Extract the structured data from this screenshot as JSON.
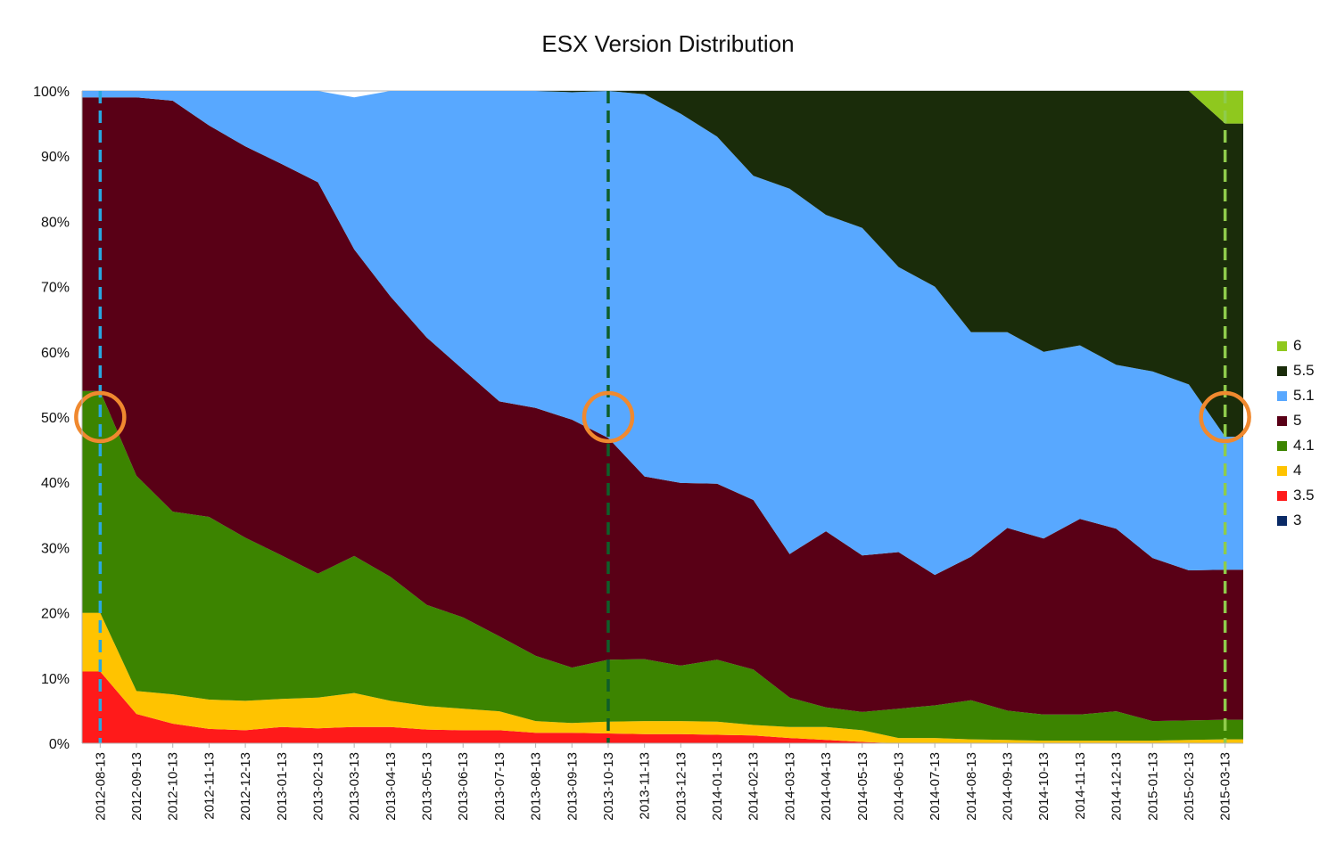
{
  "chart_data": {
    "type": "area",
    "stacked": true,
    "normalized": true,
    "title": "ESX Version Distribution",
    "xlabel": "",
    "ylabel": "",
    "ylim": [
      0,
      100
    ],
    "y_ticks": [
      "0%",
      "10%",
      "20%",
      "30%",
      "40%",
      "50%",
      "60%",
      "70%",
      "80%",
      "90%",
      "100%"
    ],
    "x_ticks": [
      "2012-08-13",
      "2012-09-13",
      "2012-10-13",
      "2012-11-13",
      "2012-12-13",
      "2013-01-13",
      "2013-02-13",
      "2013-03-13",
      "2013-04-13",
      "2013-05-13",
      "2013-06-13",
      "2013-07-13",
      "2013-08-13",
      "2013-09-13",
      "2013-10-13",
      "2013-11-13",
      "2013-12-13",
      "2014-01-13",
      "2014-02-13",
      "2014-03-13",
      "2014-04-13",
      "2014-05-13",
      "2014-06-13",
      "2014-07-13",
      "2014-08-13",
      "2014-09-13",
      "2014-10-13",
      "2014-11-13",
      "2014-12-13",
      "2015-01-13",
      "2015-02-13",
      "2015-03-13"
    ],
    "grid": true,
    "legend_position": "right",
    "series": [
      {
        "name": "3",
        "color": "#0a2a66",
        "values": [
          0,
          0,
          0,
          0,
          0,
          0,
          0,
          0,
          0,
          0,
          0,
          0,
          0,
          0,
          0,
          0,
          0,
          0,
          0,
          0,
          0,
          0,
          0,
          0,
          0,
          0,
          0,
          0,
          0,
          0,
          0,
          0
        ]
      },
      {
        "name": "3.5",
        "color": "#ff1a1a",
        "values": [
          11,
          4.5,
          3,
          2.2,
          2,
          2.5,
          2.3,
          2.5,
          2.5,
          2.1,
          2,
          2,
          1.6,
          1.6,
          1.5,
          1.4,
          1.4,
          1.3,
          1.2,
          0.8,
          0.5,
          0.2,
          0,
          0,
          0,
          0,
          0,
          0,
          0,
          0,
          0,
          0
        ]
      },
      {
        "name": "4",
        "color": "#ffc300",
        "values": [
          9,
          3.5,
          4.5,
          4.5,
          4.5,
          4.3,
          4.7,
          5.2,
          4,
          3.6,
          3.3,
          2.9,
          1.8,
          1.5,
          1.8,
          2,
          2,
          2,
          1.6,
          1.7,
          2,
          1.8,
          0.8,
          0.8,
          0.6,
          0.5,
          0.4,
          0.4,
          0.4,
          0.4,
          0.5,
          0.6
        ]
      },
      {
        "name": "4.1",
        "color": "#3c8400",
        "values": [
          34,
          33,
          28,
          28,
          25,
          22,
          19,
          21,
          19,
          15.5,
          14,
          11.5,
          10,
          8.5,
          9.5,
          9.5,
          8.5,
          9.5,
          8.5,
          4.5,
          3,
          2.8,
          4.5,
          5,
          6,
          4.5,
          4,
          4,
          4.5,
          3,
          3,
          3
        ]
      },
      {
        "name": "5",
        "color": "#590016",
        "values": [
          45,
          58,
          63,
          60,
          60,
          60,
          60,
          47,
          43,
          41,
          38,
          36,
          38,
          38,
          34,
          28,
          28,
          27,
          26,
          22,
          27,
          24,
          24,
          20,
          22,
          28,
          27,
          30,
          28,
          25,
          23,
          23
        ]
      },
      {
        "name": "5.1",
        "color": "#58a8ff",
        "values": [
          1,
          1,
          1.5,
          5.3,
          8.5,
          11.2,
          14,
          23.3,
          31.5,
          37.8,
          42.7,
          47.6,
          48.6,
          50.2,
          53.2,
          58.6,
          56.6,
          53.2,
          49.7,
          56,
          48.5,
          50.2,
          43.7,
          44.2,
          34.4,
          30,
          28.6,
          26.6,
          25.1,
          28.6,
          28.5,
          20.4
        ]
      },
      {
        "name": "5.5",
        "color": "#1a2c0a",
        "values": [
          0,
          0,
          0,
          0,
          0,
          0,
          0,
          0,
          0,
          0,
          0,
          0,
          0,
          0.2,
          0,
          0.5,
          3.5,
          7,
          13,
          15,
          19,
          21,
          27,
          30,
          37,
          37,
          40,
          39,
          42,
          43,
          45,
          48
        ]
      },
      {
        "name": "6",
        "color": "#8fc81e",
        "values": [
          0,
          0,
          0,
          0,
          0,
          0,
          0,
          0,
          0,
          0,
          0,
          0,
          0,
          0,
          0,
          0,
          0,
          0,
          0,
          0,
          0,
          0,
          0,
          0,
          0,
          0,
          0,
          0,
          0,
          0,
          0,
          5
        ]
      }
    ],
    "annotations": [
      {
        "type": "vline",
        "x": "2012-08-13",
        "color": "#29a8e0",
        "style": "dashed"
      },
      {
        "type": "vline",
        "x": "2013-10-13",
        "color": "#0f5e2a",
        "style": "dashed"
      },
      {
        "type": "vline",
        "x": "2015-03-13",
        "color": "#8fcc4c",
        "style": "dashed"
      },
      {
        "type": "circle",
        "x": "2012-08-13",
        "y": 50,
        "color": "#f0892f"
      },
      {
        "type": "circle",
        "x": "2013-10-13",
        "y": 50,
        "color": "#f0892f"
      },
      {
        "type": "circle",
        "x": "2015-03-13",
        "y": 50,
        "color": "#f0892f"
      }
    ]
  }
}
